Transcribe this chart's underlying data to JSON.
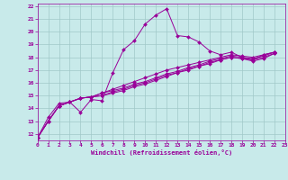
{
  "xlabel": "Windchill (Refroidissement éolien,°C)",
  "bg_color": "#c8eaea",
  "grid_color": "#a0c8c8",
  "line_color": "#990099",
  "xlim": [
    0,
    23
  ],
  "ylim": [
    11.5,
    22.2
  ],
  "xticks": [
    0,
    1,
    2,
    3,
    4,
    5,
    6,
    7,
    8,
    9,
    10,
    11,
    12,
    13,
    14,
    15,
    16,
    17,
    18,
    19,
    20,
    21,
    22,
    23
  ],
  "yticks": [
    12,
    13,
    14,
    15,
    16,
    17,
    18,
    19,
    20,
    21,
    22
  ],
  "series": [
    [
      11.7,
      13.3,
      14.4,
      14.5,
      13.7,
      14.7,
      14.6,
      16.8,
      18.6,
      19.3,
      20.6,
      21.3,
      21.8,
      19.7,
      19.6,
      19.2,
      18.5,
      18.2,
      18.4,
      18.0,
      17.8,
      18.2,
      18.4
    ],
    [
      11.7,
      13.0,
      14.2,
      14.5,
      14.8,
      14.9,
      15.2,
      15.5,
      15.8,
      16.1,
      16.4,
      16.7,
      17.0,
      17.2,
      17.4,
      17.6,
      17.8,
      18.0,
      18.2,
      18.1,
      18.0,
      18.2,
      18.4
    ],
    [
      11.7,
      13.0,
      14.2,
      14.5,
      14.8,
      14.9,
      15.2,
      15.4,
      15.6,
      15.9,
      16.1,
      16.4,
      16.7,
      16.9,
      17.2,
      17.4,
      17.7,
      17.9,
      18.1,
      18.0,
      17.9,
      18.1,
      18.4
    ],
    [
      11.7,
      13.0,
      14.2,
      14.5,
      14.8,
      14.9,
      15.0,
      15.3,
      15.5,
      15.8,
      16.0,
      16.3,
      16.6,
      16.8,
      17.1,
      17.3,
      17.6,
      17.8,
      18.0,
      17.9,
      17.8,
      18.0,
      18.3
    ],
    [
      11.7,
      13.0,
      14.2,
      14.5,
      14.8,
      14.9,
      15.0,
      15.2,
      15.4,
      15.7,
      15.9,
      16.2,
      16.5,
      16.8,
      17.0,
      17.3,
      17.5,
      17.8,
      18.0,
      17.9,
      17.7,
      17.9,
      18.3
    ]
  ]
}
